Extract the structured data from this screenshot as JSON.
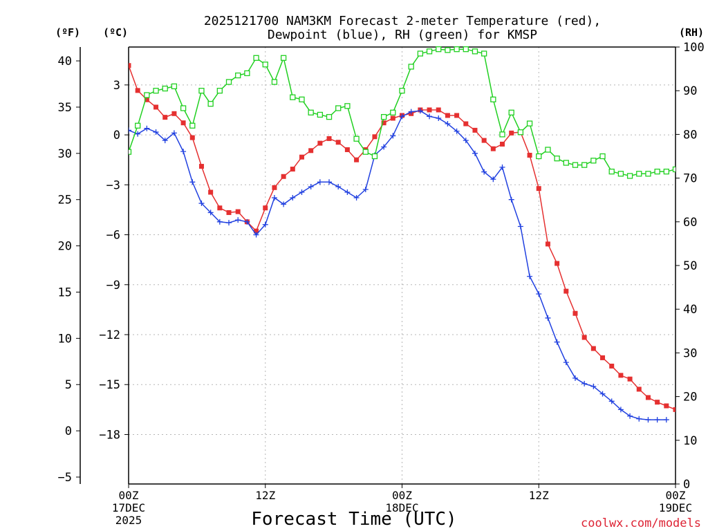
{
  "chart_data": {
    "type": "line",
    "title_line1": "2025121700 NAM3KM Forecast 2-meter Temperature (red),",
    "title_line2": "Dewpoint (blue), RH (green) for KMSP",
    "xlabel": "Forecast Time (UTC)",
    "unit_f": "(ºF)",
    "unit_c": "(ºC)",
    "unit_rh": "(RH)",
    "watermark": "coolwx.com/models",
    "xlim_hours": [
      0,
      60
    ],
    "ylim_f": [
      -5,
      41.5
    ],
    "ylim_rh": [
      0,
      100
    ],
    "f_ticks": [
      40,
      35,
      30,
      25,
      20,
      15,
      10,
      5,
      0,
      -5
    ],
    "c_ticks": [
      3,
      0,
      -3,
      -6,
      -9,
      -12,
      -15,
      -18
    ],
    "rh_ticks": [
      100,
      90,
      80,
      70,
      60,
      50,
      40,
      30,
      20,
      10,
      0
    ],
    "x_ticks": [
      {
        "hour": 0,
        "label": "00Z",
        "sub1": "17DEC",
        "sub2": "2025"
      },
      {
        "hour": 15,
        "label": "12Z",
        "sub1": "",
        "sub2": ""
      },
      {
        "hour": 30,
        "label": "00Z",
        "sub1": "18DEC",
        "sub2": ""
      },
      {
        "hour": 45,
        "label": "12Z",
        "sub1": "",
        "sub2": ""
      },
      {
        "hour": 60,
        "label": "00Z",
        "sub1": "19DEC",
        "sub2": ""
      },
      {
        "hour": 75,
        "label": "12Z",
        "sub1": "",
        "sub2": ""
      }
    ],
    "hours": [
      0,
      1,
      2,
      3,
      4,
      5,
      6,
      7,
      8,
      9,
      10,
      11,
      12,
      13,
      14,
      15,
      16,
      17,
      18,
      19,
      20,
      21,
      22,
      23,
      24,
      25,
      26,
      27,
      28,
      29,
      30,
      31,
      32,
      33,
      34,
      35,
      36,
      37,
      38,
      39,
      40,
      41,
      42,
      43,
      44,
      45,
      46,
      47,
      48,
      49,
      50,
      51,
      52,
      53,
      54,
      55,
      56,
      57,
      58,
      59,
      60,
      61,
      62,
      63,
      64,
      65,
      66,
      67,
      68,
      69,
      70,
      71,
      72,
      73,
      74,
      75
    ],
    "series": [
      {
        "name": "Temperature",
        "unit": "degF",
        "color": "#e53030",
        "marker": "square-filled",
        "values": [
          39.5,
          36.8,
          35.8,
          35.0,
          33.9,
          34.3,
          33.3,
          31.7,
          28.6,
          25.8,
          24.1,
          23.6,
          23.7,
          22.6,
          21.6,
          24.1,
          26.3,
          27.5,
          28.3,
          29.6,
          30.3,
          31.1,
          31.6,
          31.2,
          30.4,
          29.3,
          30.4,
          31.8,
          33.3,
          33.8,
          34.1,
          34.3,
          34.7,
          34.7,
          34.7,
          34.1,
          34.1,
          33.2,
          32.5,
          31.4,
          30.5,
          31.0,
          32.2,
          32.3,
          29.8,
          26.2,
          20.2,
          18.1,
          15.1,
          12.7,
          10.1,
          8.9,
          7.9,
          7.0,
          6.0,
          5.6,
          4.5,
          3.6,
          3.1,
          2.7,
          2.3,
          2.3,
          2.1,
          1.9
        ]
      },
      {
        "name": "Dewpoint",
        "unit": "degF",
        "color": "#2040e0",
        "marker": "plus",
        "values": [
          32.5,
          32.1,
          32.7,
          32.3,
          31.4,
          32.2,
          30.2,
          26.9,
          24.6,
          23.6,
          22.6,
          22.5,
          22.8,
          22.6,
          21.2,
          22.3,
          25.2,
          24.5,
          25.2,
          25.8,
          26.4,
          26.9,
          26.9,
          26.4,
          25.8,
          25.2,
          26.1,
          29.8,
          30.7,
          31.9,
          34.0,
          34.5,
          34.6,
          34.0,
          33.8,
          33.2,
          32.4,
          31.4,
          30.0,
          28.0,
          27.2,
          28.5,
          25.0,
          22.1,
          16.7,
          14.8,
          12.2,
          9.6,
          7.4,
          5.7,
          5.1,
          4.8,
          4.0,
          3.2,
          2.3,
          1.6,
          1.3,
          1.2,
          1.2,
          1.2
        ]
      },
      {
        "name": "RH",
        "unit": "percent",
        "color": "#20d020",
        "marker": "square-open",
        "values": [
          76,
          82,
          89,
          90,
          90.5,
          91,
          86,
          82,
          90,
          87,
          90,
          92,
          93.5,
          94,
          97.5,
          96,
          92,
          97.5,
          88.5,
          88,
          85,
          84.5,
          84,
          86,
          86.5,
          79,
          76,
          75,
          84,
          85,
          90,
          95.5,
          98.5,
          99,
          99.5,
          99.3,
          99.5,
          99.5,
          99,
          98.5,
          88,
          80,
          85,
          80.5,
          82.5,
          75,
          76.5,
          74.5,
          73.5,
          73,
          73,
          74,
          75,
          71.5,
          71,
          70.5,
          71,
          71,
          71.5,
          71.5,
          72,
          72,
          72.5,
          73
        ]
      }
    ]
  }
}
